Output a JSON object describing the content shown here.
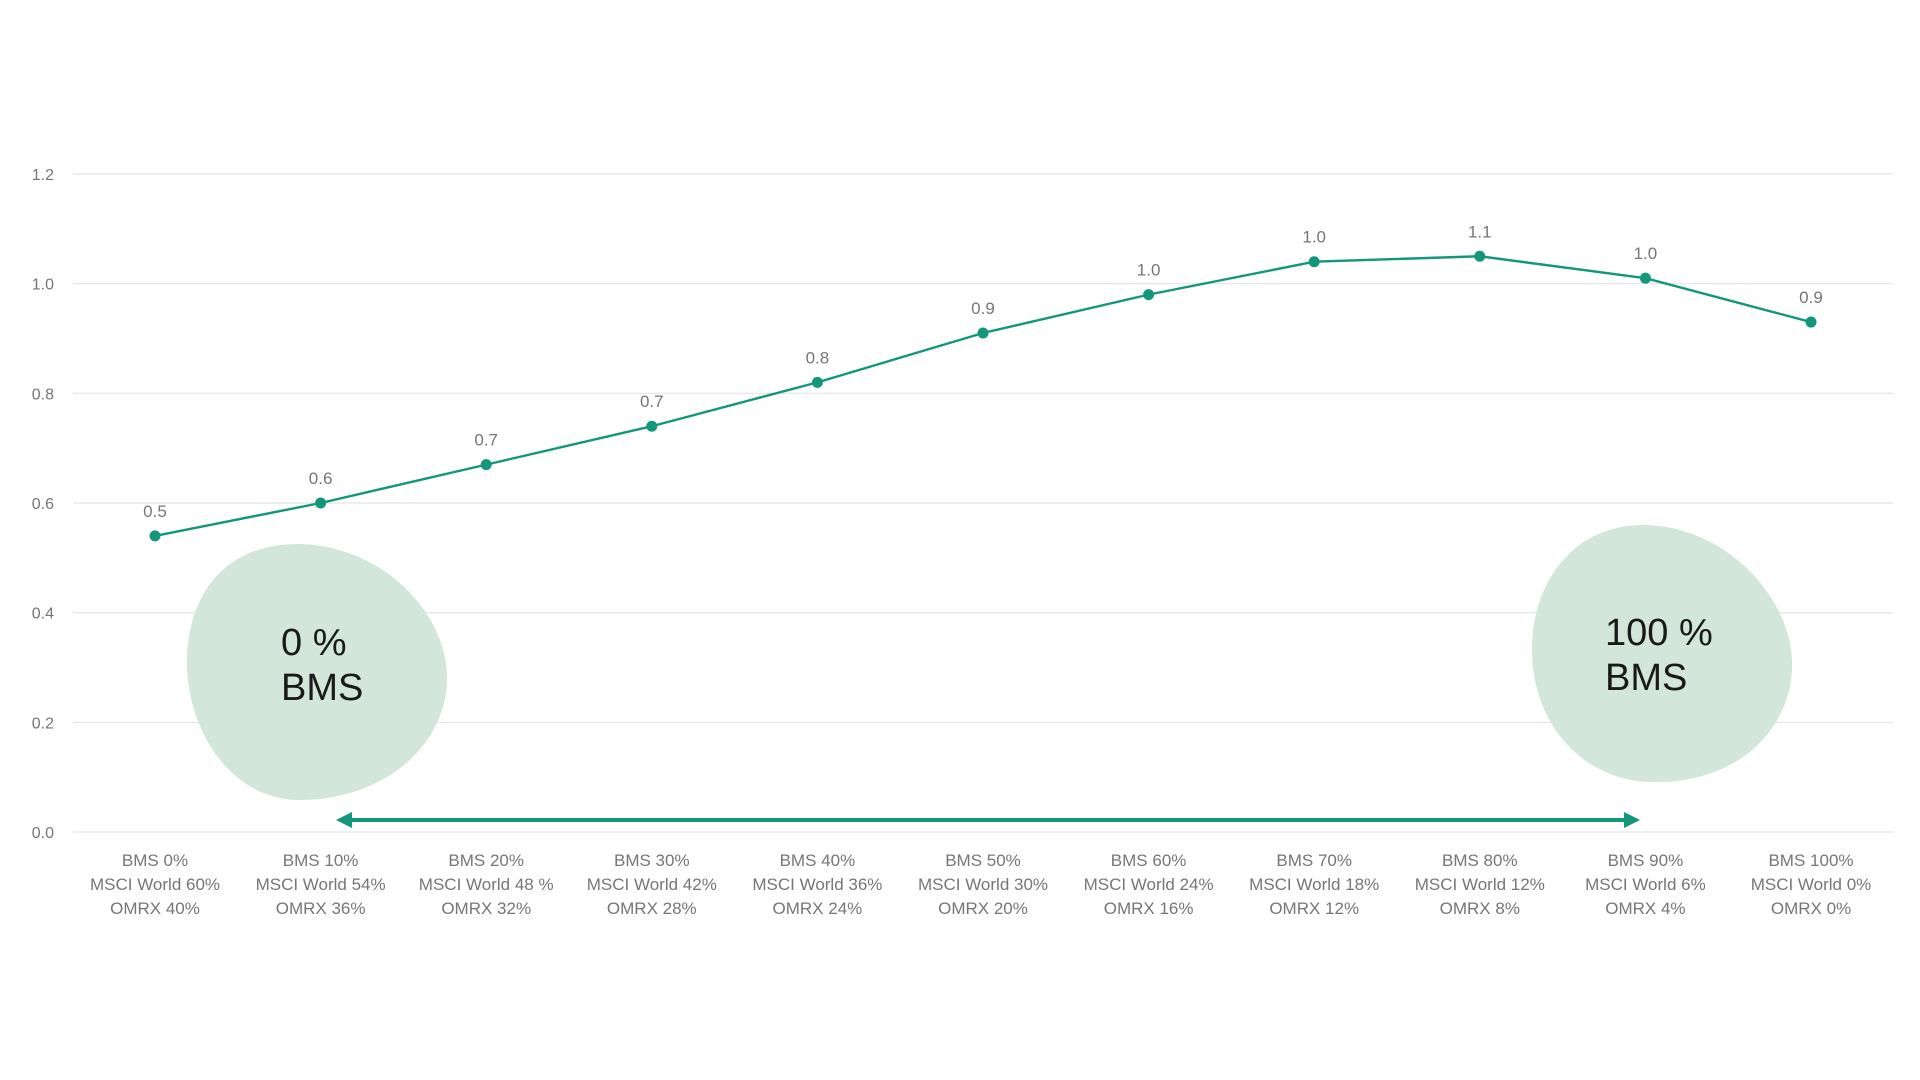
{
  "chart_data": {
    "type": "line",
    "title": "",
    "xlabel": "",
    "ylabel": "",
    "ylim": [
      0,
      1.2
    ],
    "yticks": [
      "0.0",
      "0.2",
      "0.4",
      "0.6",
      "0.8",
      "1.0",
      "1.2"
    ],
    "grid": true,
    "categories": [
      [
        "BMS 0%",
        "MSCI World 60%",
        "OMRX 40%"
      ],
      [
        "BMS 10%",
        "MSCI World 54%",
        "OMRX 36%"
      ],
      [
        "BMS 20%",
        "MSCI World 48 %",
        "OMRX 32%"
      ],
      [
        "BMS 30%",
        "MSCI World 42%",
        "OMRX 28%"
      ],
      [
        "BMS 40%",
        "MSCI World 36%",
        "OMRX 24%"
      ],
      [
        "BMS 50%",
        "MSCI World 30%",
        "OMRX 20%"
      ],
      [
        "BMS 60%",
        "MSCI World 24%",
        "OMRX 16%"
      ],
      [
        "BMS 70%",
        "MSCI World 18%",
        "OMRX 12%"
      ],
      [
        "BMS 80%",
        "MSCI World 12%",
        "OMRX 8%"
      ],
      [
        "BMS 90%",
        "MSCI World 6%",
        "OMRX 4%"
      ],
      [
        "BMS 100%",
        "MSCI World 0%",
        "OMRX 0%"
      ]
    ],
    "series": [
      {
        "values": [
          0.54,
          0.6,
          0.67,
          0.74,
          0.82,
          0.91,
          0.98,
          1.04,
          1.05,
          1.01,
          0.93
        ],
        "labels": [
          "0.5",
          "0.6",
          "0.7",
          "0.7",
          "0.8",
          "0.9",
          "1.0",
          "1.0",
          "1.1",
          "1.0",
          "0.9"
        ],
        "color": "#13977a"
      }
    ],
    "annotations": {
      "left_blob": {
        "line1": "0 %",
        "line2": "BMS"
      },
      "right_blob": {
        "line1": "100 %",
        "line2": "BMS"
      },
      "arrow_color": "#13977a",
      "blob_color": "#d3e6da"
    }
  }
}
